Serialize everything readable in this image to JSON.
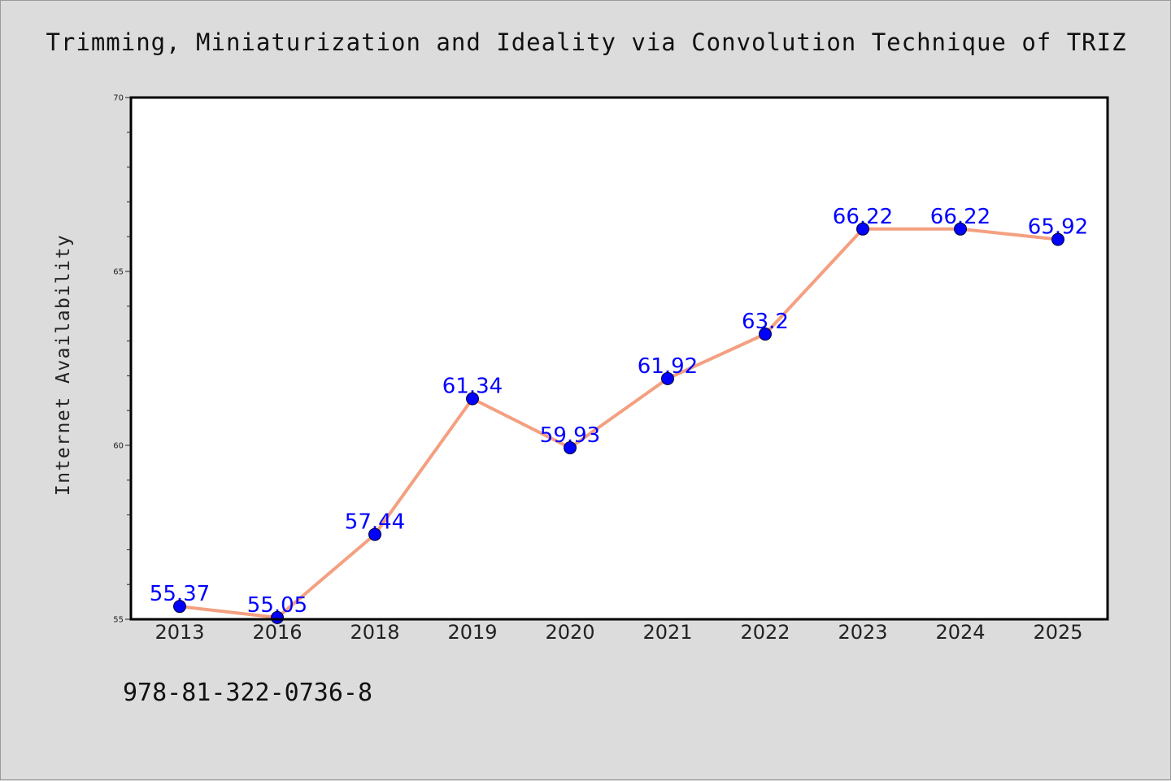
{
  "chart_data": {
    "type": "line",
    "title": "Trimming, Miniaturization and Ideality via Convolution Technique of TRIZ",
    "xlabel": "",
    "ylabel": "Internet Availability",
    "categories": [
      "2013",
      "2016",
      "2018",
      "2019",
      "2020",
      "2021",
      "2022",
      "2023",
      "2024",
      "2025"
    ],
    "series": [
      {
        "values": [
          55.37,
          55.05,
          57.44,
          61.34,
          59.93,
          61.92,
          63.2,
          66.22,
          66.22,
          65.92
        ],
        "data_labels": [
          "55.37",
          "55.05",
          "57.44",
          "61.34",
          "59.93",
          "61.92",
          "63.2",
          "66.22",
          "66.22",
          "65.92"
        ],
        "line_color": "#f4a080",
        "marker_color": "#0000ff"
      }
    ],
    "ylim": [
      55,
      70
    ],
    "y_ticks": [
      "55",
      "60",
      "65",
      "70"
    ],
    "grid": false,
    "legend": "none",
    "plot_background": "#ffffff",
    "page_background": "#dcdcdc"
  },
  "footer": {
    "code": "978-81-322-0736-8"
  }
}
